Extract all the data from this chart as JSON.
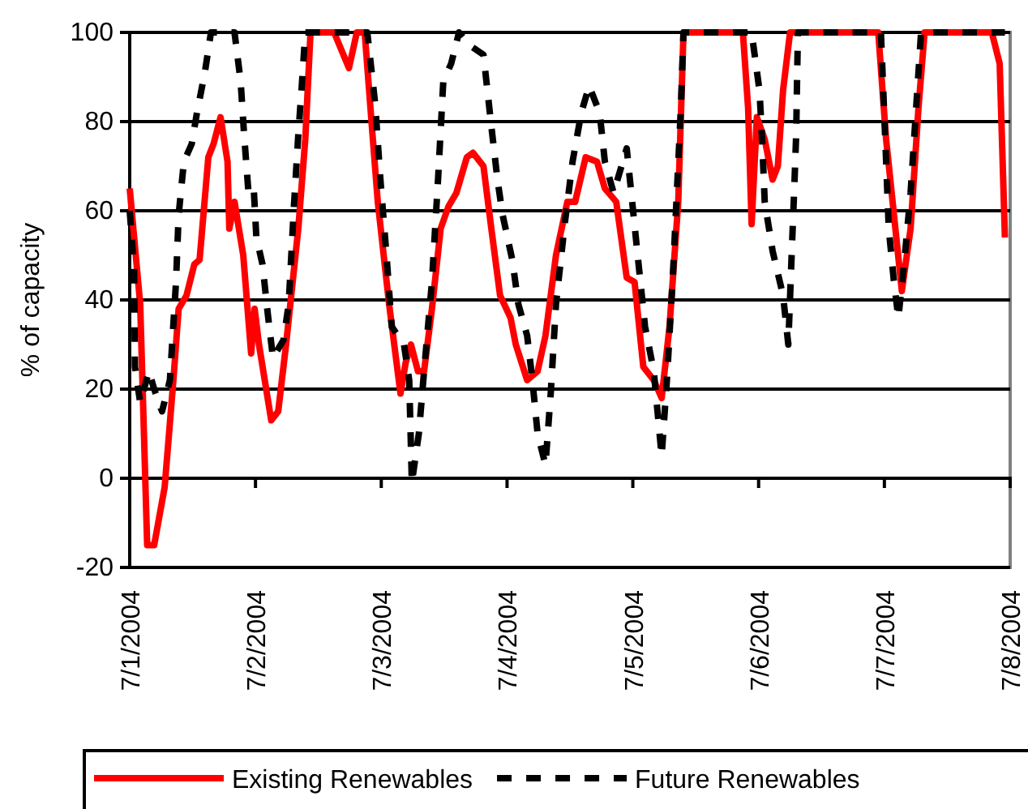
{
  "chart_data": {
    "type": "line",
    "ylabel": "% of capacity",
    "xlim": [
      "2004-07-01",
      "2004-07-08"
    ],
    "xticks": [
      {
        "value": "2004-07-01",
        "label": "7/1/2004"
      },
      {
        "value": "2004-07-02",
        "label": "7/2/2004"
      },
      {
        "value": "2004-07-03",
        "label": "7/3/2004"
      },
      {
        "value": "2004-07-04",
        "label": "7/4/2004"
      },
      {
        "value": "2004-07-05",
        "label": "7/5/2004"
      },
      {
        "value": "2004-07-06",
        "label": "7/6/2004"
      },
      {
        "value": "2004-07-07",
        "label": "7/7/2004"
      },
      {
        "value": "2004-07-08",
        "label": "7/8/2004"
      }
    ],
    "ylim": [
      -20,
      100
    ],
    "yticks": [
      -20,
      0,
      20,
      40,
      60,
      80,
      100
    ],
    "grid": "y",
    "legend": "bottom",
    "series": [
      {
        "name": "Existing Renewables",
        "color": "#ff0000",
        "line_style": "solid",
        "x": [
          "2004-07-01T00:00",
          "2004-07-01T02:00",
          "2004-07-01T03:20",
          "2004-07-01T04:40",
          "2004-07-01T06:40",
          "2004-07-01T08:20",
          "2004-07-01T09:20",
          "2004-07-01T10:50",
          "2004-07-01T12:20",
          "2004-07-01T13:20",
          "2004-07-01T15:00",
          "2004-07-01T16:00",
          "2004-07-01T17:20",
          "2004-07-01T18:40",
          "2004-07-01T19:00",
          "2004-07-01T20:00",
          "2004-07-01T21:40",
          "2004-07-01T23:10",
          "2004-07-01T23:50",
          "2004-07-02T00:40",
          "2004-07-02T03:00",
          "2004-07-02T04:20",
          "2004-07-02T05:50",
          "2004-07-02T08:10",
          "2004-07-02T09:30",
          "2004-07-02T10:30",
          "2004-07-02T12:40",
          "2004-07-02T15:00",
          "2004-07-02T17:50",
          "2004-07-02T19:20",
          "2004-07-02T20:50",
          "2004-07-02T22:20",
          "2004-07-02T23:20",
          "2004-07-03T01:30",
          "2004-07-03T03:40",
          "2004-07-03T04:40",
          "2004-07-03T05:40",
          "2004-07-03T07:00",
          "2004-07-03T08:10",
          "2004-07-03T09:40",
          "2004-07-03T11:20",
          "2004-07-03T12:50",
          "2004-07-03T14:20",
          "2004-07-03T16:20",
          "2004-07-03T17:30",
          "2004-07-03T19:30",
          "2004-07-03T21:00",
          "2004-07-03T22:40",
          "2004-07-04T00:40",
          "2004-07-04T01:40",
          "2004-07-04T03:50",
          "2004-07-04T05:50",
          "2004-07-04T07:20",
          "2004-07-04T09:20",
          "2004-07-04T11:30",
          "2004-07-04T13:00",
          "2004-07-04T15:00",
          "2004-07-04T17:10",
          "2004-07-04T18:40",
          "2004-07-04T20:50",
          "2004-07-04T22:50",
          "2004-07-05T00:20",
          "2004-07-05T02:00",
          "2004-07-05T04:00",
          "2004-07-05T05:30",
          "2004-07-05T07:00",
          "2004-07-05T08:40",
          "2004-07-05T09:40",
          "2004-07-05T21:00",
          "2004-07-05T22:00",
          "2004-07-05T22:40",
          "2004-07-05T23:40",
          "2004-07-06T01:10",
          "2004-07-06T02:40",
          "2004-07-06T03:40",
          "2004-07-06T04:40",
          "2004-07-06T06:00",
          "2004-07-06T22:50",
          "2004-07-07T00:20",
          "2004-07-07T01:50",
          "2004-07-07T03:20",
          "2004-07-07T05:00",
          "2004-07-07T06:30",
          "2004-07-07T07:40",
          "2004-07-07T20:30",
          "2004-07-07T22:00",
          "2004-07-07T23:00"
        ],
        "values": [
          65,
          39,
          -15,
          -15,
          -2,
          22,
          38,
          41,
          48,
          49,
          72,
          75,
          81,
          71,
          56,
          62,
          50,
          28,
          38,
          30,
          13,
          15,
          30,
          56,
          76,
          100,
          100,
          100,
          92,
          100,
          100,
          77,
          62,
          39,
          19,
          26,
          30,
          24,
          24,
          38,
          56,
          61,
          64,
          72,
          73,
          70,
          56,
          41,
          36,
          30,
          22,
          24,
          32,
          50,
          62,
          62,
          72,
          71,
          65,
          62,
          45,
          44,
          25,
          22,
          18,
          34,
          62,
          100,
          100,
          83,
          57,
          81,
          76,
          67,
          70,
          87,
          100,
          100,
          76,
          59,
          42,
          56,
          83,
          100,
          100,
          93,
          54
        ]
      },
      {
        "name": "Future Renewables",
        "color": "#000000",
        "line_style": "dashed",
        "x": [
          "2004-07-01T00:00",
          "2004-07-01T00:50",
          "2004-07-01T01:00",
          "2004-07-01T02:00",
          "2004-07-01T03:40",
          "2004-07-01T04:40",
          "2004-07-01T06:10",
          "2004-07-01T07:40",
          "2004-07-01T08:50",
          "2004-07-01T09:20",
          "2004-07-01T10:20",
          "2004-07-01T11:50",
          "2004-07-01T12:50",
          "2004-07-01T14:20",
          "2004-07-01T15:30",
          "2004-07-01T20:00",
          "2004-07-01T21:10",
          "2004-07-01T21:50",
          "2004-07-01T22:40",
          "2004-07-01T23:40",
          "2004-07-02T00:10",
          "2004-07-02T01:20",
          "2004-07-02T02:20",
          "2004-07-02T03:20",
          "2004-07-02T05:20",
          "2004-07-02T06:20",
          "2004-07-02T07:20",
          "2004-07-02T08:10",
          "2004-07-02T08:50",
          "2004-07-02T09:30",
          "2004-07-02T21:20",
          "2004-07-02T22:50",
          "2004-07-02T23:50",
          "2004-07-03T01:00",
          "2004-07-03T02:00",
          "2004-07-03T04:20",
          "2004-07-03T05:20",
          "2004-07-03T05:50",
          "2004-07-03T07:10",
          "2004-07-03T08:10",
          "2004-07-03T09:40",
          "2004-07-03T10:50",
          "2004-07-03T11:50",
          "2004-07-03T13:20",
          "2004-07-03T14:50",
          "2004-07-03T17:00",
          "2004-07-03T19:30",
          "2004-07-03T21:00",
          "2004-07-03T22:10",
          "2004-07-03T23:10",
          "2004-07-04T01:00",
          "2004-07-04T02:10",
          "2004-07-04T03:50",
          "2004-07-04T04:50",
          "2004-07-04T05:50",
          "2004-07-04T07:20",
          "2004-07-04T08:20",
          "2004-07-04T09:20",
          "2004-07-04T11:00",
          "2004-07-04T12:30",
          "2004-07-04T14:10",
          "2004-07-04T15:40",
          "2004-07-04T17:40",
          "2004-07-04T18:40",
          "2004-07-04T20:20",
          "2004-07-04T22:50",
          "2004-07-05T00:50",
          "2004-07-05T02:20",
          "2004-07-05T04:00",
          "2004-07-05T05:30",
          "2004-07-05T06:30",
          "2004-07-05T07:40",
          "2004-07-05T09:10",
          "2004-07-05T09:40",
          "2004-07-05T22:40",
          "2004-07-06T00:10",
          "2004-07-06T00:40",
          "2004-07-06T01:10",
          "2004-07-06T02:40",
          "2004-07-06T04:40",
          "2004-07-06T05:40",
          "2004-07-06T06:20",
          "2004-07-06T06:50",
          "2004-07-06T07:10",
          "2004-07-06T07:20",
          "2004-07-06T07:30",
          "2004-07-06T23:20",
          "2004-07-07T00:10",
          "2004-07-07T00:50",
          "2004-07-07T01:50",
          "2004-07-07T02:40",
          "2004-07-07T03:50",
          "2004-07-07T05:00",
          "2004-07-07T06:00",
          "2004-07-07T07:00",
          "2004-07-07T23:00"
        ],
        "values": [
          60,
          47,
          25,
          17,
          24,
          20,
          15,
          22,
          44,
          59,
          71,
          75,
          82,
          91,
          100,
          100,
          89,
          77,
          64,
          65,
          54,
          48,
          37,
          27,
          31,
          39,
          61,
          77,
          88,
          100,
          100,
          84,
          67,
          50,
          34,
          30,
          22,
          -1,
          10,
          24,
          44,
          67,
          89,
          93,
          100,
          97,
          95,
          79,
          67,
          59,
          49,
          39,
          32,
          22,
          10,
          3,
          19,
          39,
          57,
          71,
          82,
          88,
          82,
          71,
          64,
          74,
          51,
          34,
          24,
          5,
          22,
          46,
          83,
          100,
          100,
          87,
          76,
          62,
          51,
          41,
          30,
          51,
          66,
          77,
          89,
          100,
          100,
          76,
          56,
          44,
          36,
          49,
          64,
          82,
          100,
          100
        ]
      }
    ]
  }
}
